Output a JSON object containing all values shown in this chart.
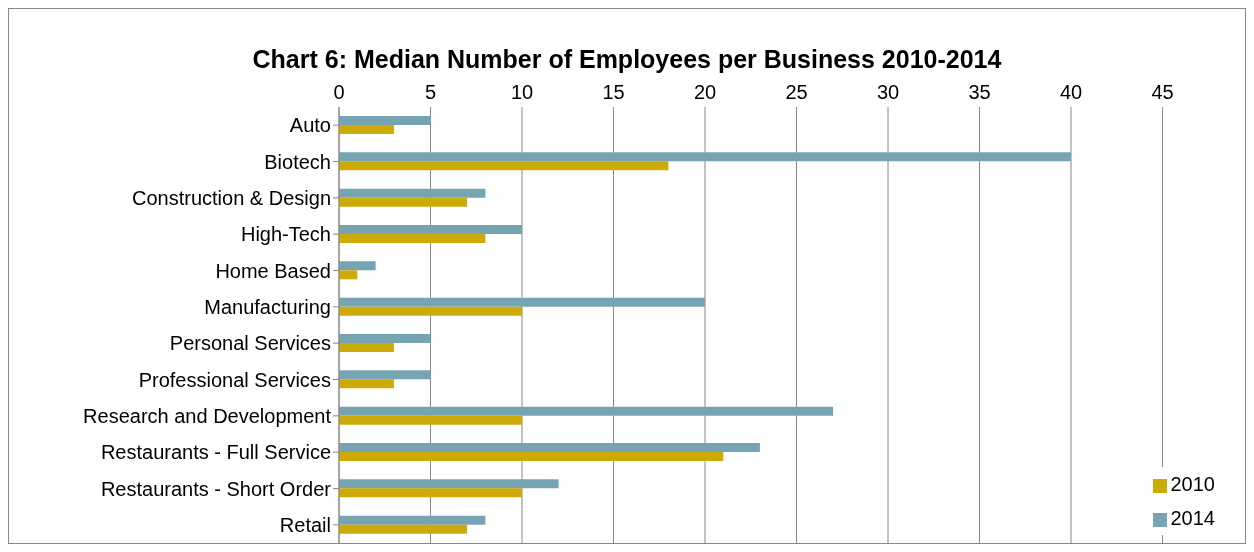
{
  "chart_data": {
    "type": "bar",
    "orientation": "horizontal",
    "title": "Chart 6: Median Number of Employees per Business 2010-2014",
    "categories": [
      "Auto",
      "Biotech",
      "Construction & Design",
      "High-Tech",
      "Home Based",
      "Manufacturing",
      "Personal Services",
      "Professional Services",
      "Research and Development",
      "Restaurants - Full Service",
      "Restaurants - Short Order",
      "Retail"
    ],
    "series": [
      {
        "name": "2014",
        "color": "#77a4b2",
        "values": [
          5,
          40,
          8,
          10,
          2,
          20,
          5,
          5,
          27,
          23,
          12,
          8
        ]
      },
      {
        "name": "2010",
        "color": "#ccaa08",
        "values": [
          3,
          18,
          7,
          8,
          1,
          10,
          3,
          3,
          10,
          21,
          10,
          7
        ]
      }
    ],
    "xlim": [
      0,
      45
    ],
    "xticks": [
      0,
      5,
      10,
      15,
      20,
      25,
      30,
      35,
      40,
      45
    ],
    "grid": "x",
    "legend": "right"
  }
}
